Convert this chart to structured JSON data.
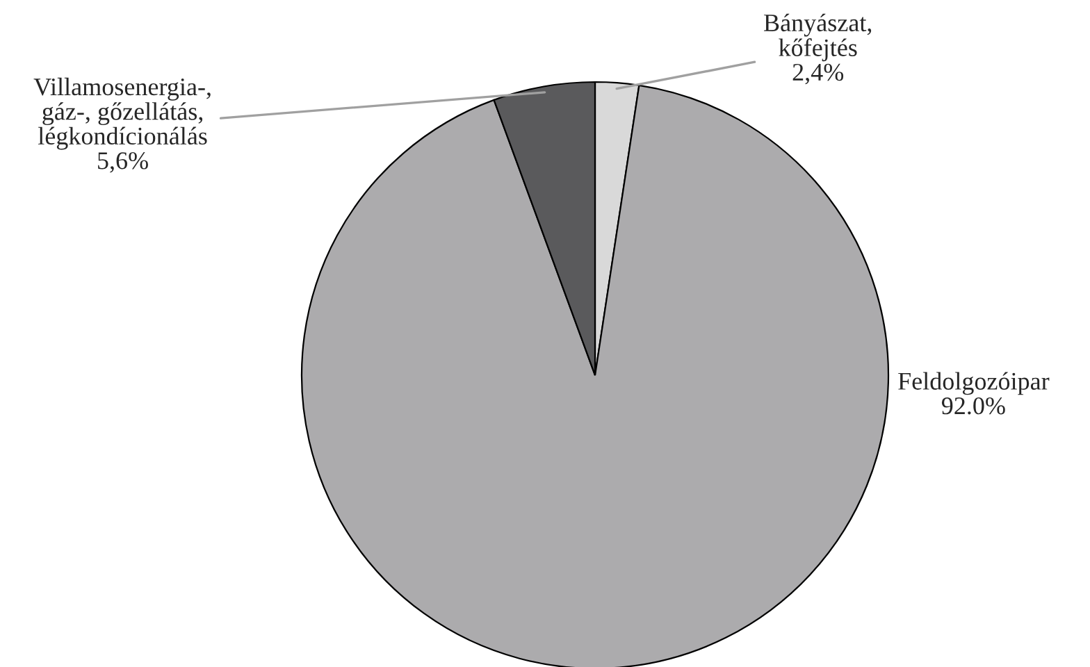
{
  "chart_data": {
    "type": "pie",
    "categories": [
      "Bányászat,\nkőfejtés",
      "Feldolgozóipar",
      "Villamosenergia-,\ngáz-, gőzellátás,\nlégkondícionálás"
    ],
    "values": [
      2.4,
      92.0,
      5.6
    ],
    "value_labels": [
      "2,4%",
      "92.0%",
      "5,6%"
    ],
    "colors": [
      "#d9d9d9",
      "#acabad",
      "#5a5a5c"
    ]
  }
}
